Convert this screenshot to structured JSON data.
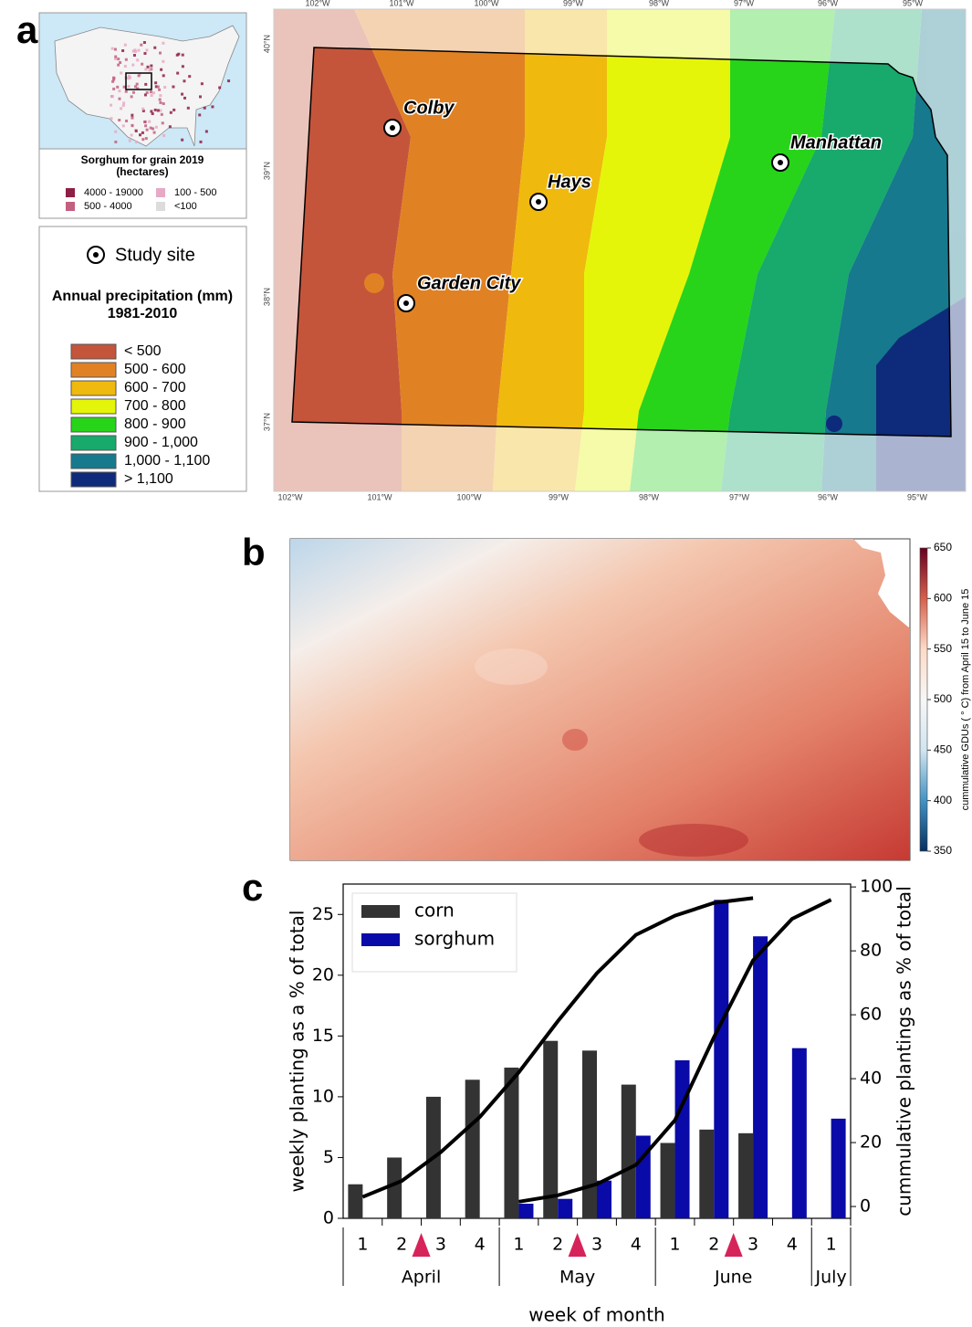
{
  "panel_labels": [
    "a",
    "b",
    "c"
  ],
  "inset": {
    "title_lines": [
      "Sorghum for grain 2019",
      "(hectares)"
    ],
    "classes": [
      {
        "label": "4000 - 19000",
        "color": "#8e1f45"
      },
      {
        "label": "100 - 500",
        "color": "#e7a9c6"
      },
      {
        "label": "500 - 4000",
        "color": "#c3607f"
      },
      {
        "label": "<100",
        "color": "#dcdcdc"
      }
    ]
  },
  "precip_legend": {
    "study_site": "Study site",
    "title": "Annual precipitation (mm)",
    "period": "1981-2010",
    "classes": [
      {
        "label": "< 500",
        "color": "#c4553b"
      },
      {
        "label": "500 - 600",
        "color": "#e08224"
      },
      {
        "label": "600 - 700",
        "color": "#f0b90e"
      },
      {
        "label": "700 - 800",
        "color": "#e5f50a"
      },
      {
        "label": "800 - 900",
        "color": "#27d41a"
      },
      {
        "label": "900 - 1,000",
        "color": "#17aa6c"
      },
      {
        "label": "1,000 - 1,100",
        "color": "#16798d"
      },
      {
        "label": "> 1,100",
        "color": "#0e2a7a"
      }
    ]
  },
  "kansas_map": {
    "longitudes": [
      "102°W",
      "101°W",
      "100°W",
      "99°W",
      "98°W",
      "97°W",
      "96°W",
      "95°W"
    ],
    "latitudes": [
      "40°N",
      "39°N",
      "38°N",
      "37°N"
    ],
    "sites": [
      "Colby",
      "Hays",
      "Manhattan",
      "Garden City"
    ]
  },
  "gdu_map": {
    "colorbar_label": "cummulative GDUs ( ° C) from April 15 to June 15",
    "clim": [
      350,
      650
    ],
    "ticks": [
      350,
      400,
      450,
      500,
      550,
      600,
      650
    ]
  },
  "chart_data": {
    "type": "bar",
    "y_label": "weekly planting as a % of total",
    "y2_label": "cummulative plantings as % of total",
    "x_label": "week of month",
    "groups": [
      {
        "label": "April",
        "categories": [
          "1",
          "2",
          "3",
          "4"
        ]
      },
      {
        "label": "May",
        "categories": [
          "1",
          "2",
          "3",
          "4"
        ]
      },
      {
        "label": "June",
        "categories": [
          "1",
          "2",
          "3",
          "4"
        ]
      },
      {
        "label": "July",
        "categories": [
          "1"
        ]
      }
    ],
    "series": [
      {
        "name": "corn",
        "color": "#333333",
        "values": [
          2.8,
          5.0,
          10.0,
          11.4,
          12.4,
          14.6,
          13.8,
          11.0,
          6.2,
          7.3,
          7.0,
          null,
          null
        ]
      },
      {
        "name": "sorghum",
        "color": "#0a0aa8",
        "values": [
          null,
          null,
          null,
          null,
          1.2,
          1.6,
          3.1,
          6.8,
          13.0,
          26.2,
          23.2,
          14.0,
          8.2
        ]
      },
      {
        "style": "line",
        "axis": "y2",
        "color": "#000000",
        "values": [
          3,
          8,
          17,
          28,
          42,
          58,
          73,
          85,
          91,
          95,
          96.5,
          null,
          null
        ]
      },
      {
        "style": "line",
        "axis": "y2",
        "color": "#000000",
        "values": [
          null,
          null,
          null,
          null,
          1.5,
          3.5,
          7,
          13,
          27,
          53,
          77,
          90,
          96
        ]
      }
    ],
    "ylim": [
      0,
      27.5
    ],
    "yticks": [
      0,
      5,
      10,
      15,
      20,
      25
    ],
    "y2lim": [
      -3.7,
      100.9
    ],
    "y2ticks": [
      0,
      20,
      40,
      60,
      80,
      100
    ],
    "legend": "upper left"
  }
}
